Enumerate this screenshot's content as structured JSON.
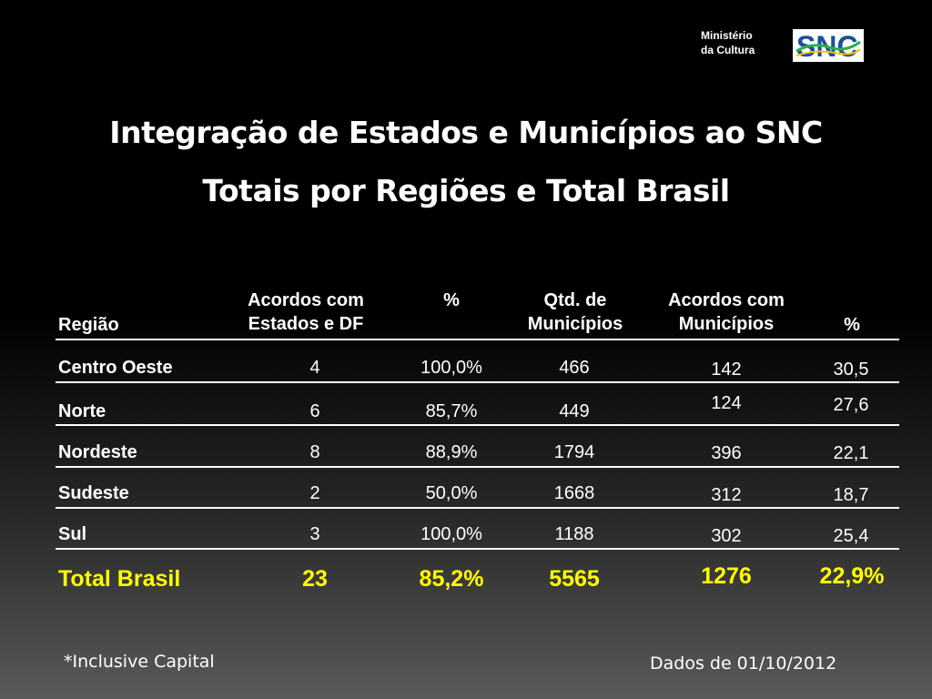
{
  "header": {
    "ministry_line1": "Ministério",
    "ministry_line2": "da Cultura",
    "logo_text": "SNC"
  },
  "title": {
    "line1": "Integração de Estados e Municípios ao SNC",
    "line2": "Totais por Regiões e Total Brasil"
  },
  "table": {
    "headers": {
      "regiao": "Região",
      "acordos_estados_1": "Acordos com",
      "acordos_estados_2": "Estados e DF",
      "pct1": "%",
      "qtd_1": "Qtd. de",
      "qtd_2": "Municípios",
      "acordos_mun_1": "Acordos com",
      "acordos_mun_2": "Municípios",
      "pct2": "%"
    },
    "rows": [
      {
        "regiao": "Centro Oeste",
        "acordos_estados": "4",
        "pct_estados": "100,0%",
        "qtd_municipios": "466",
        "acordos_municipios": "142",
        "pct_municipios": "30,5"
      },
      {
        "regiao": "Norte",
        "acordos_estados": "6",
        "pct_estados": "85,7%",
        "qtd_municipios": "449",
        "acordos_municipios": "124",
        "pct_municipios": "27,6"
      },
      {
        "regiao": "Nordeste",
        "acordos_estados": "8",
        "pct_estados": "88,9%",
        "qtd_municipios": "1794",
        "acordos_municipios": "396",
        "pct_municipios": "22,1"
      },
      {
        "regiao": "Sudeste",
        "acordos_estados": "2",
        "pct_estados": "50,0%",
        "qtd_municipios": "1668",
        "acordos_municipios": "312",
        "pct_municipios": "18,7"
      },
      {
        "regiao": "Sul",
        "acordos_estados": "3",
        "pct_estados": "100,0%",
        "qtd_municipios": "1188",
        "acordos_municipios": "302",
        "pct_municipios": "25,4"
      }
    ],
    "total": {
      "regiao": "Total Brasil",
      "acordos_estados": "23",
      "pct_estados": "85,2%",
      "qtd_municipios": "5565",
      "acordos_municipios": "1276",
      "pct_municipios": "22,9%"
    }
  },
  "footer": {
    "note": "*Inclusive Capital",
    "date": "Dados de 01/10/2012"
  },
  "colors": {
    "total_text": "#ffff00",
    "logo_blue": "#1a4f9c",
    "logo_green": "#2eae4a",
    "logo_yellow": "#f2c500"
  }
}
